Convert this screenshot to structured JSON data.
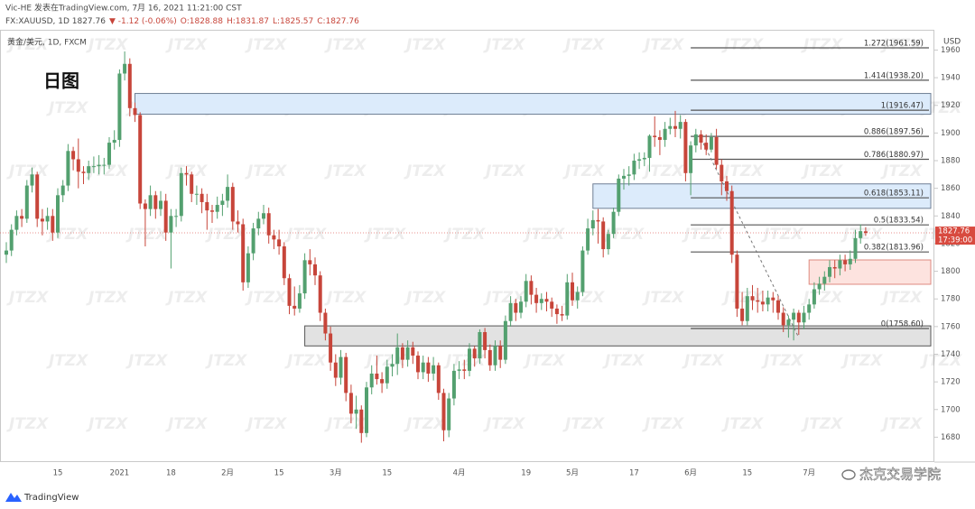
{
  "chart_data": {
    "type": "candlestick",
    "header": [
      "Vic-HE 发表在TradingView.com, 7月 16, 2021 11:21:00 CST"
    ],
    "quote": [
      "FX:XAUUSD, 1D 1827.76",
      "▼ -1.12 (-0.06%)",
      "O:1828.88",
      "H:1831.87",
      "L:1825.57",
      "C:1827.76"
    ],
    "subtitle": "黄金/美元, 1D, FXCM",
    "annotation": "日图",
    "y_unit": "USD",
    "watermark": "JTZX",
    "footer_left": "TradingView",
    "footer_right": "杰克交易学院",
    "up_color": "#53a06f",
    "down_color": "#c7453a",
    "grid": false,
    "ylim": [
      1662,
      1974
    ],
    "yticks": [
      1680,
      1700,
      1720,
      1740,
      1760,
      1780,
      1800,
      1820,
      1840,
      1860,
      1880,
      1900,
      1920,
      1940,
      1960
    ],
    "price_tag": {
      "value": 1827.76,
      "countdown": "17:39:00",
      "color": "#d84a3f"
    },
    "categories": [
      null,
      null,
      null,
      null,
      null,
      null,
      null,
      null,
      null,
      null,
      "15",
      null,
      null,
      null,
      null,
      null,
      null,
      null,
      null,
      null,
      null,
      null,
      "2021",
      null,
      null,
      null,
      null,
      null,
      null,
      null,
      null,
      null,
      "18",
      null,
      null,
      null,
      null,
      null,
      null,
      null,
      null,
      null,
      null,
      "2月",
      null,
      null,
      null,
      null,
      null,
      null,
      null,
      null,
      null,
      "15",
      null,
      null,
      null,
      null,
      null,
      null,
      null,
      null,
      null,
      null,
      "3月",
      null,
      null,
      null,
      null,
      null,
      null,
      null,
      null,
      null,
      "15",
      null,
      null,
      null,
      null,
      null,
      null,
      null,
      null,
      null,
      null,
      null,
      null,
      null,
      "4月",
      null,
      null,
      null,
      null,
      null,
      null,
      null,
      null,
      null,
      null,
      null,
      null,
      "19",
      null,
      null,
      null,
      null,
      null,
      null,
      null,
      null,
      "5月",
      null,
      null,
      null,
      null,
      null,
      null,
      null,
      null,
      null,
      null,
      null,
      "17",
      null,
      null,
      null,
      null,
      null,
      null,
      null,
      null,
      null,
      null,
      "6月",
      null,
      null,
      null,
      null,
      null,
      null,
      null,
      null,
      null,
      null,
      "15",
      null,
      null,
      null,
      null,
      null,
      null,
      null,
      null,
      null,
      null,
      null,
      "7月",
      null,
      null,
      null,
      null,
      null,
      null,
      null,
      null,
      null,
      null,
      null
    ],
    "ohlc": [
      [
        1812,
        1821,
        1806,
        1815
      ],
      [
        1815,
        1834,
        1811,
        1830
      ],
      [
        1830,
        1844,
        1826,
        1840
      ],
      [
        1840,
        1845,
        1832,
        1838
      ],
      [
        1838,
        1866,
        1835,
        1862
      ],
      [
        1862,
        1875,
        1857,
        1870
      ],
      [
        1870,
        1872,
        1832,
        1838
      ],
      [
        1838,
        1845,
        1826,
        1836
      ],
      [
        1836,
        1846,
        1830,
        1840
      ],
      [
        1840,
        1845,
        1822,
        1828
      ],
      [
        1828,
        1860,
        1824,
        1855
      ],
      [
        1855,
        1866,
        1850,
        1862
      ],
      [
        1862,
        1892,
        1858,
        1887
      ],
      [
        1887,
        1890,
        1873,
        1881
      ],
      [
        1881,
        1896,
        1860,
        1872
      ],
      [
        1872,
        1876,
        1863,
        1871
      ],
      [
        1871,
        1880,
        1866,
        1876
      ],
      [
        1876,
        1883,
        1871,
        1876
      ],
      [
        1876,
        1884,
        1870,
        1877
      ],
      [
        1877,
        1882,
        1870,
        1877
      ],
      [
        1877,
        1897,
        1874,
        1893
      ],
      [
        1893,
        1902,
        1888,
        1895
      ],
      [
        1895,
        1946,
        1890,
        1943
      ],
      [
        1943,
        1959,
        1938,
        1950
      ],
      [
        1950,
        1954,
        1912,
        1918
      ],
      [
        1918,
        1922,
        1908,
        1913
      ],
      [
        1913,
        1915,
        1845,
        1849
      ],
      [
        1849,
        1852,
        1818,
        1845
      ],
      [
        1845,
        1862,
        1840,
        1855
      ],
      [
        1855,
        1858,
        1838,
        1845
      ],
      [
        1845,
        1858,
        1840,
        1851
      ],
      [
        1851,
        1856,
        1822,
        1828
      ],
      [
        1828,
        1845,
        1802,
        1840
      ],
      [
        1840,
        1845,
        1832,
        1840
      ],
      [
        1840,
        1875,
        1836,
        1871
      ],
      [
        1871,
        1876,
        1862,
        1870
      ],
      [
        1870,
        1872,
        1850,
        1856
      ],
      [
        1856,
        1862,
        1848,
        1856
      ],
      [
        1856,
        1860,
        1842,
        1850
      ],
      [
        1850,
        1856,
        1830,
        1844
      ],
      [
        1844,
        1848,
        1835,
        1843
      ],
      [
        1843,
        1854,
        1838,
        1848
      ],
      [
        1848,
        1856,
        1840,
        1851
      ],
      [
        1851,
        1870,
        1846,
        1861
      ],
      [
        1861,
        1864,
        1830,
        1836
      ],
      [
        1836,
        1844,
        1828,
        1834
      ],
      [
        1834,
        1838,
        1786,
        1792
      ],
      [
        1792,
        1818,
        1788,
        1813
      ],
      [
        1813,
        1835,
        1808,
        1831
      ],
      [
        1831,
        1843,
        1826,
        1838
      ],
      [
        1838,
        1848,
        1834,
        1842
      ],
      [
        1842,
        1846,
        1820,
        1826
      ],
      [
        1826,
        1830,
        1816,
        1823
      ],
      [
        1823,
        1830,
        1812,
        1818
      ],
      [
        1818,
        1821,
        1790,
        1795
      ],
      [
        1795,
        1798,
        1769,
        1775
      ],
      [
        1775,
        1789,
        1768,
        1773
      ],
      [
        1773,
        1790,
        1770,
        1784
      ],
      [
        1784,
        1813,
        1780,
        1808
      ],
      [
        1808,
        1816,
        1797,
        1805
      ],
      [
        1805,
        1810,
        1790,
        1797
      ],
      [
        1797,
        1800,
        1764,
        1770
      ],
      [
        1770,
        1773,
        1750,
        1755
      ],
      [
        1755,
        1760,
        1728,
        1734
      ],
      [
        1734,
        1740,
        1717,
        1723
      ],
      [
        1723,
        1743,
        1718,
        1738
      ],
      [
        1738,
        1741,
        1706,
        1712
      ],
      [
        1712,
        1718,
        1690,
        1697
      ],
      [
        1697,
        1710,
        1686,
        1700
      ],
      [
        1700,
        1703,
        1676,
        1683
      ],
      [
        1683,
        1720,
        1680,
        1716
      ],
      [
        1716,
        1732,
        1711,
        1726
      ],
      [
        1726,
        1739,
        1718,
        1722
      ],
      [
        1722,
        1727,
        1712,
        1719
      ],
      [
        1719,
        1736,
        1715,
        1731
      ],
      [
        1731,
        1740,
        1724,
        1733
      ],
      [
        1733,
        1755,
        1725,
        1745
      ],
      [
        1745,
        1748,
        1730,
        1736
      ],
      [
        1736,
        1750,
        1731,
        1745
      ],
      [
        1745,
        1749,
        1733,
        1739
      ],
      [
        1739,
        1742,
        1722,
        1727
      ],
      [
        1727,
        1739,
        1722,
        1734
      ],
      [
        1734,
        1738,
        1720,
        1726
      ],
      [
        1726,
        1738,
        1721,
        1732
      ],
      [
        1732,
        1734,
        1707,
        1712
      ],
      [
        1712,
        1715,
        1677,
        1685
      ],
      [
        1685,
        1712,
        1680,
        1708
      ],
      [
        1708,
        1733,
        1703,
        1728
      ],
      [
        1728,
        1735,
        1722,
        1729
      ],
      [
        1729,
        1736,
        1722,
        1728
      ],
      [
        1728,
        1748,
        1724,
        1744
      ],
      [
        1744,
        1746,
        1731,
        1737
      ],
      [
        1737,
        1758,
        1733,
        1756
      ],
      [
        1756,
        1759,
        1737,
        1743
      ],
      [
        1743,
        1747,
        1728,
        1732
      ],
      [
        1732,
        1750,
        1728,
        1746
      ],
      [
        1746,
        1750,
        1730,
        1736
      ],
      [
        1736,
        1768,
        1733,
        1764
      ],
      [
        1764,
        1782,
        1760,
        1777
      ],
      [
        1777,
        1780,
        1764,
        1770
      ],
      [
        1770,
        1782,
        1766,
        1778
      ],
      [
        1778,
        1798,
        1774,
        1793
      ],
      [
        1793,
        1797,
        1776,
        1783
      ],
      [
        1783,
        1788,
        1770,
        1777
      ],
      [
        1777,
        1784,
        1772,
        1780
      ],
      [
        1780,
        1785,
        1771,
        1778
      ],
      [
        1778,
        1781,
        1767,
        1773
      ],
      [
        1773,
        1776,
        1762,
        1769
      ],
      [
        1769,
        1775,
        1764,
        1768
      ],
      [
        1768,
        1798,
        1765,
        1792
      ],
      [
        1792,
        1799,
        1775,
        1779
      ],
      [
        1779,
        1789,
        1773,
        1785
      ],
      [
        1785,
        1818,
        1782,
        1815
      ],
      [
        1815,
        1838,
        1812,
        1831
      ],
      [
        1831,
        1844,
        1826,
        1837
      ],
      [
        1837,
        1845,
        1820,
        1836
      ],
      [
        1836,
        1839,
        1810,
        1816
      ],
      [
        1816,
        1830,
        1812,
        1827
      ],
      [
        1827,
        1846,
        1824,
        1843
      ],
      [
        1843,
        1870,
        1840,
        1867
      ],
      [
        1867,
        1874,
        1859,
        1869
      ],
      [
        1869,
        1876,
        1862,
        1870
      ],
      [
        1870,
        1885,
        1866,
        1880
      ],
      [
        1880,
        1886,
        1874,
        1881
      ],
      [
        1881,
        1886,
        1876,
        1882
      ],
      [
        1882,
        1899,
        1872,
        1898
      ],
      [
        1898,
        1912,
        1890,
        1897
      ],
      [
        1897,
        1902,
        1884,
        1895
      ],
      [
        1895,
        1908,
        1890,
        1903
      ],
      [
        1903,
        1911,
        1899,
        1905
      ],
      [
        1905,
        1916,
        1897,
        1903
      ],
      [
        1903,
        1913,
        1896,
        1908
      ],
      [
        1908,
        1910,
        1865,
        1871
      ],
      [
        1871,
        1894,
        1855,
        1891
      ],
      [
        1891,
        1903,
        1886,
        1899
      ],
      [
        1899,
        1902,
        1888,
        1893
      ],
      [
        1893,
        1899,
        1884,
        1888
      ],
      [
        1888,
        1900,
        1886,
        1897
      ],
      [
        1897,
        1903,
        1874,
        1877
      ],
      [
        1877,
        1881,
        1855,
        1865
      ],
      [
        1865,
        1869,
        1851,
        1858
      ],
      [
        1858,
        1862,
        1806,
        1812
      ],
      [
        1812,
        1815,
        1767,
        1773
      ],
      [
        1773,
        1785,
        1761,
        1764
      ],
      [
        1764,
        1788,
        1761,
        1782
      ],
      [
        1782,
        1790,
        1772,
        1779
      ],
      [
        1779,
        1788,
        1770,
        1778
      ],
      [
        1778,
        1786,
        1771,
        1776
      ],
      [
        1776,
        1786,
        1771,
        1781
      ],
      [
        1781,
        1785,
        1770,
        1779
      ],
      [
        1779,
        1782,
        1765,
        1770
      ],
      [
        1770,
        1774,
        1756,
        1761
      ],
      [
        1761,
        1768,
        1752,
        1765
      ],
      [
        1765,
        1773,
        1750,
        1770
      ],
      [
        1770,
        1772,
        1754,
        1763
      ],
      [
        1763,
        1775,
        1758,
        1770
      ],
      [
        1770,
        1780,
        1765,
        1776
      ],
      [
        1776,
        1792,
        1773,
        1787
      ],
      [
        1787,
        1796,
        1783,
        1791
      ],
      [
        1791,
        1800,
        1786,
        1796
      ],
      [
        1796,
        1808,
        1792,
        1803
      ],
      [
        1803,
        1808,
        1795,
        1802
      ],
      [
        1802,
        1812,
        1797,
        1808
      ],
      [
        1808,
        1812,
        1800,
        1805
      ],
      [
        1805,
        1815,
        1801,
        1809
      ],
      [
        1809,
        1830,
        1806,
        1824
      ],
      [
        1824,
        1834,
        1820,
        1829
      ],
      [
        1828.88,
        1831.87,
        1825.57,
        1827.76
      ]
    ],
    "zones": [
      {
        "start": 25,
        "top": 1928.6,
        "bottom": 1913.6,
        "color": "#dcebfb",
        "border": "#6f7f95"
      },
      {
        "start": 114,
        "top": 1863.2,
        "bottom": 1845.5,
        "color": "#dcebfb",
        "border": "#6f7f95"
      },
      {
        "start": 58,
        "top": 1760.5,
        "bottom": 1746,
        "color": "#e2e2e2",
        "border": "#555555"
      },
      {
        "start": 156,
        "top": 1808.2,
        "bottom": 1790.6,
        "color": "#fde3df",
        "border": "#de8a80"
      }
    ],
    "fib": {
      "start": 133,
      "levels": [
        {
          "value": 1961.59,
          "label": "1.272(1961.59)"
        },
        {
          "value": 1938.2,
          "label": "1.414(1938.20)"
        },
        {
          "value": 1916.47,
          "label": "1(1916.47)"
        },
        {
          "value": 1897.56,
          "label": "0.886(1897.56)"
        },
        {
          "value": 1880.97,
          "label": "0.786(1880.97)"
        },
        {
          "value": 1853.11,
          "label": "0.618(1853.11)"
        },
        {
          "value": 1833.54,
          "label": "0.5(1833.54)"
        },
        {
          "value": 1813.96,
          "label": "0.382(1813.96)"
        },
        {
          "value": 1758.6,
          "label": "0(1758.60)"
        }
      ]
    },
    "trendline": {
      "x": [
        135,
        154
      ],
      "y": [
        1896,
        1752
      ]
    }
  }
}
